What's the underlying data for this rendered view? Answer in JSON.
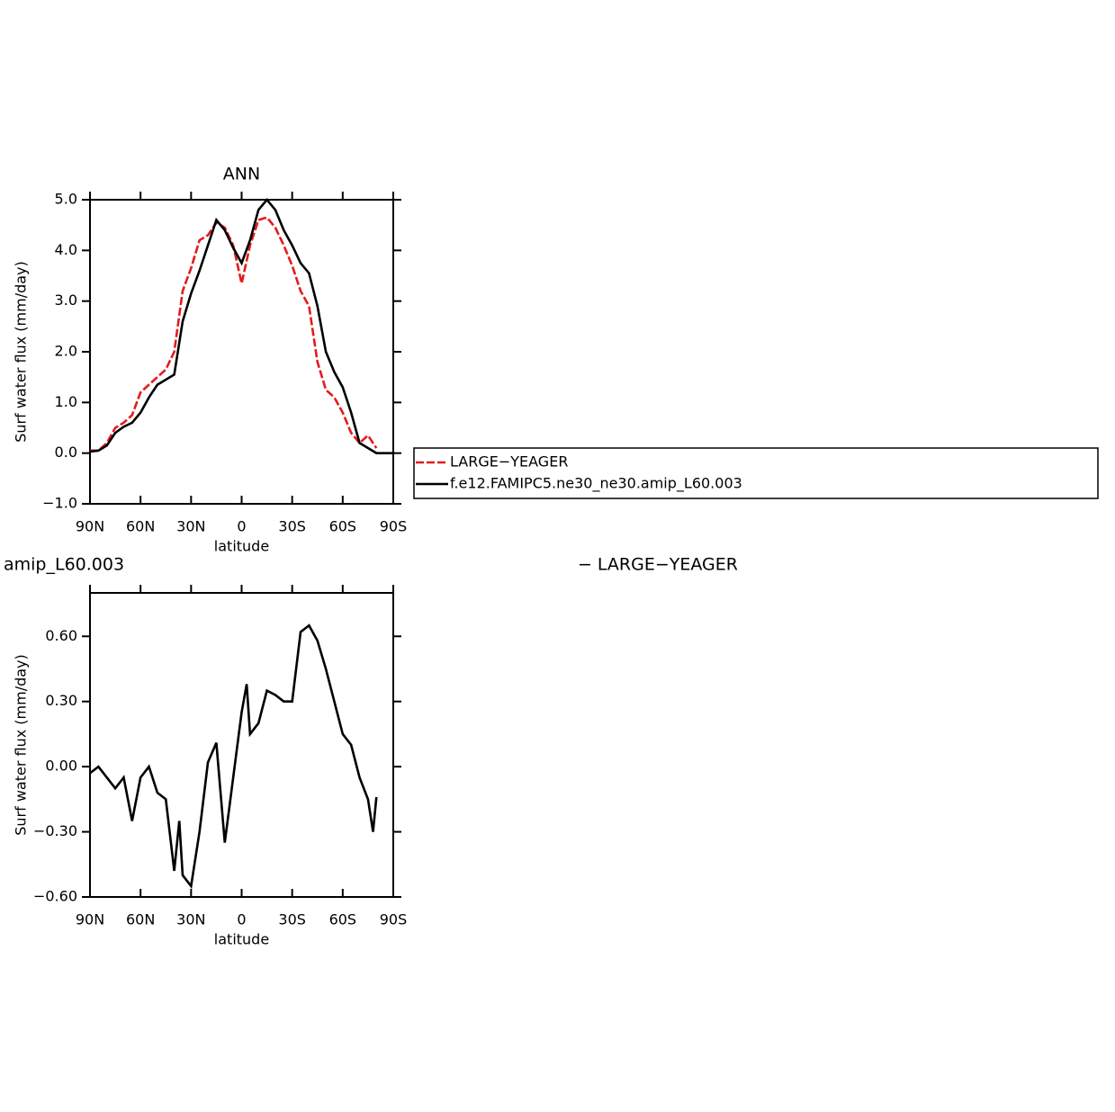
{
  "chart_data": [
    {
      "type": "line",
      "title": "ANN",
      "xlabel": "latitude",
      "ylabel": "Surf water flux (mm/day)",
      "x": [
        90,
        85,
        80,
        75,
        70,
        65,
        60,
        55,
        50,
        45,
        40,
        35,
        30,
        25,
        20,
        15,
        10,
        5,
        0,
        -5,
        -10,
        -15,
        -20,
        -25,
        -30,
        -35,
        -40,
        -45,
        -50,
        -55,
        -60,
        -65,
        -70,
        -75,
        -80,
        -85,
        -90
      ],
      "series": [
        {
          "name": "LARGE−YEAGER",
          "color": "#e41a1c",
          "dash": true,
          "values": [
            0.05,
            0.05,
            0.2,
            0.5,
            0.6,
            0.75,
            1.2,
            1.35,
            1.5,
            1.65,
            2.0,
            3.2,
            3.65,
            4.2,
            4.3,
            4.55,
            4.45,
            4.1,
            3.35,
            4.1,
            4.6,
            4.65,
            4.45,
            4.1,
            3.7,
            3.2,
            2.9,
            1.8,
            1.25,
            1.1,
            0.8,
            0.4,
            0.2,
            0.35,
            0.1,
            null,
            null
          ]
        },
        {
          "name": "f.e12.FAMIPC5.ne30_ne30.amip_L60.003",
          "color": "#000000",
          "dash": false,
          "values": [
            0.03,
            0.05,
            0.15,
            0.4,
            0.52,
            0.6,
            0.8,
            1.1,
            1.35,
            1.45,
            1.55,
            2.6,
            3.15,
            3.6,
            4.1,
            4.6,
            4.4,
            4.05,
            3.75,
            4.2,
            4.8,
            5.0,
            4.8,
            4.4,
            4.1,
            3.75,
            3.55,
            2.9,
            2.0,
            1.6,
            1.3,
            0.8,
            0.2,
            0.1,
            0.0,
            0.0,
            0.0
          ]
        }
      ],
      "xlim": [
        90,
        -90
      ],
      "xticks": [
        {
          "value": 90,
          "label": "90N"
        },
        {
          "value": 60,
          "label": "60N"
        },
        {
          "value": 30,
          "label": "30N"
        },
        0,
        {
          "value": -30,
          "label": "30S"
        },
        {
          "value": -60,
          "label": "60S"
        },
        {
          "value": -90,
          "label": "90S"
        }
      ],
      "ylim": [
        -1,
        5
      ],
      "yticks": [
        {
          "value": -1,
          "label": "−1.0"
        },
        {
          "value": 0,
          "label": "0.0"
        },
        {
          "value": 1,
          "label": "1.0"
        },
        {
          "value": 2,
          "label": "2.0"
        },
        {
          "value": 3,
          "label": "3.0"
        },
        {
          "value": 4,
          "label": "4.0"
        },
        {
          "value": 5,
          "label": "5.0"
        }
      ],
      "legend": "outside-right"
    },
    {
      "type": "line",
      "left_title": "amip_L60.003",
      "right_title": "− LARGE−YEAGER",
      "xlabel": "latitude",
      "ylabel": "Surf water flux (mm/day)",
      "x": [
        90,
        85,
        80,
        75,
        70,
        65,
        60,
        55,
        50,
        45,
        40,
        37,
        35,
        30,
        25,
        20,
        15,
        10,
        5,
        0,
        -3,
        -5,
        -10,
        -15,
        -20,
        -25,
        -30,
        -35,
        -40,
        -45,
        -50,
        -55,
        -60,
        -65,
        -70,
        -75,
        -78,
        -80
      ],
      "series": [
        {
          "color": "#000000",
          "dash": false,
          "values": [
            -0.03,
            0.0,
            -0.05,
            -0.1,
            -0.05,
            -0.25,
            -0.05,
            0.0,
            -0.12,
            -0.15,
            -0.48,
            -0.25,
            -0.5,
            -0.55,
            -0.3,
            0.02,
            0.11,
            -0.35,
            -0.05,
            0.25,
            0.38,
            0.15,
            0.2,
            0.35,
            0.33,
            0.3,
            0.3,
            0.62,
            0.65,
            0.58,
            0.45,
            0.3,
            0.15,
            0.1,
            -0.05,
            -0.15,
            -0.3,
            -0.14
          ]
        }
      ],
      "xlim": [
        90,
        -90
      ],
      "xticks": [
        {
          "value": 90,
          "label": "90N"
        },
        {
          "value": 60,
          "label": "60N"
        },
        {
          "value": 30,
          "label": "30N"
        },
        0,
        {
          "value": -30,
          "label": "30S"
        },
        {
          "value": -60,
          "label": "60S"
        },
        {
          "value": -90,
          "label": "90S"
        }
      ],
      "ylim": [
        -0.6,
        0.8
      ],
      "yticks": [
        {
          "value": -0.6,
          "label": "−0.60"
        },
        {
          "value": -0.3,
          "label": "−0.30"
        },
        {
          "value": 0,
          "label": "0.00"
        },
        {
          "value": 0.3,
          "label": "0.30"
        },
        {
          "value": 0.6,
          "label": "0.60"
        }
      ]
    }
  ]
}
